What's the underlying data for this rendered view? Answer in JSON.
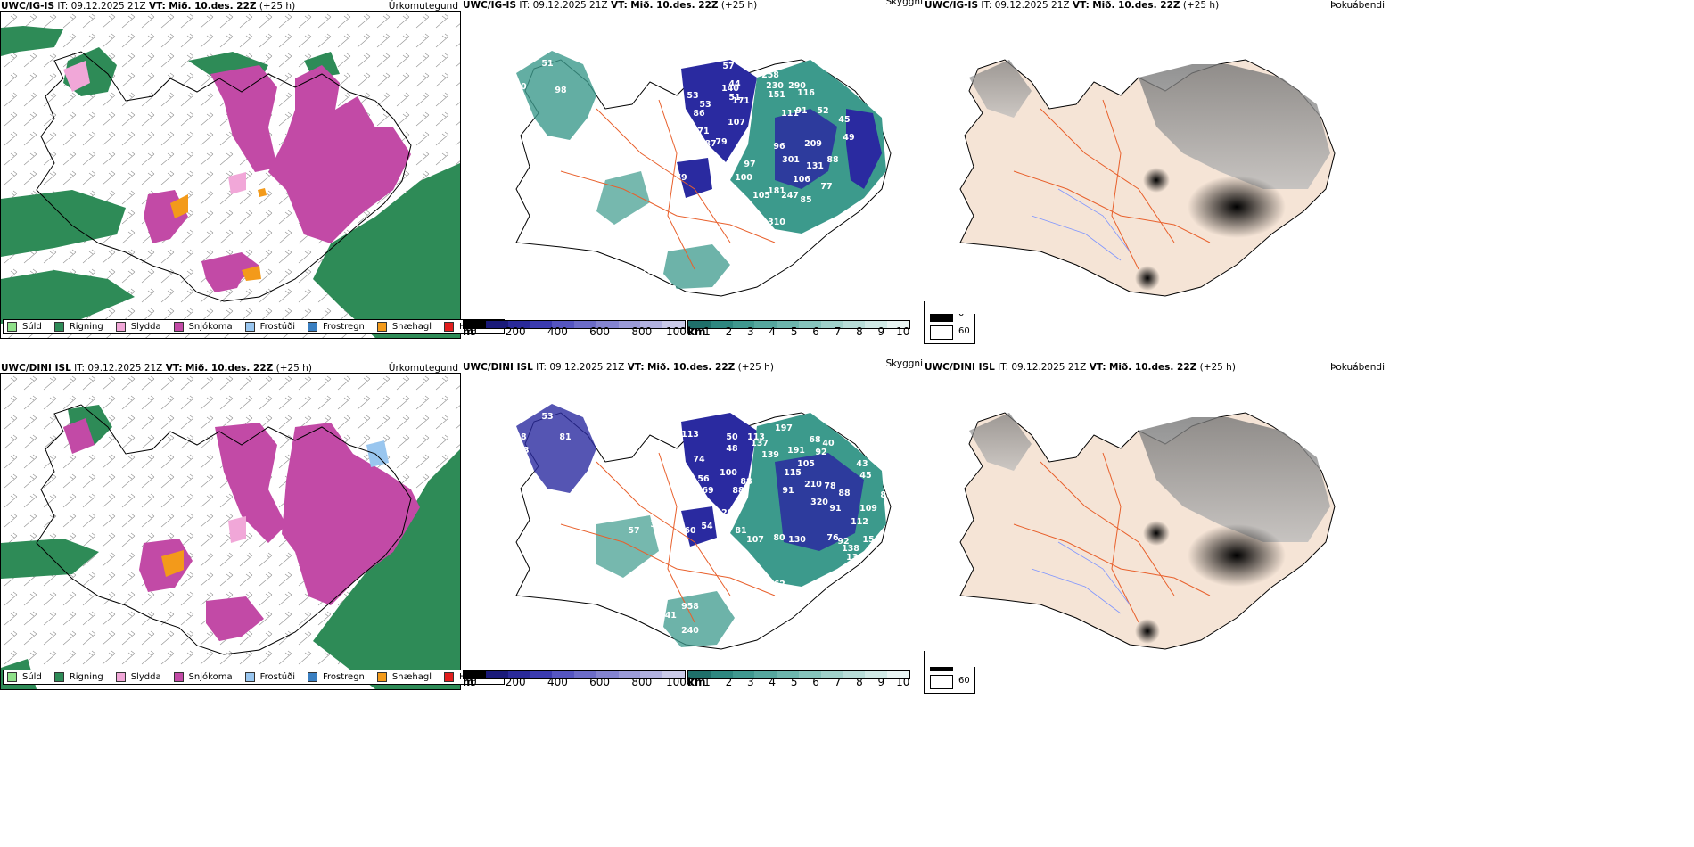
{
  "rows": [
    {
      "left": {
        "model": "UWC/IG-IS",
        "it": "IT: 09.12.2025 21Z",
        "vt_label": "VT:",
        "vt": "Mið. 10.des. 22Z",
        "lead": "(+25 h)",
        "param": "Úrkomutegund"
      },
      "mid": {
        "model": "UWC/IG-IS",
        "it": "IT: 09.12.2025 21Z",
        "vt_label": "VT:",
        "vt": "Mið. 10.des. 22Z",
        "lead": "(+25 h)",
        "param": "Skyggni",
        "values": [
          "13",
          "51",
          "104",
          "80",
          "98",
          "53",
          "53",
          "86",
          "71",
          "87",
          "44",
          "51",
          "57",
          "140",
          "171",
          "107",
          "79",
          "216",
          "258",
          "230",
          "290",
          "151",
          "116",
          "111",
          "91",
          "52",
          "45",
          "49",
          "96",
          "209",
          "301",
          "131",
          "106",
          "88",
          "77",
          "79",
          "70",
          "100",
          "97",
          "87",
          "105",
          "181",
          "247",
          "85",
          "310",
          "202",
          "203",
          "332"
        ]
      },
      "right": {
        "model": "UWC/IG-IS",
        "it": "IT: 09.12.2025 21Z",
        "vt_label": "VT:",
        "vt": "Mið. 10.des. 22Z",
        "lead": "(+25 h)",
        "param": "Þokuábendi"
      }
    },
    {
      "left": {
        "model": "UWC/DINI ISL",
        "it": "IT: 09.12.2025 21Z",
        "vt_label": "VT:",
        "vt": "Mið. 10.des. 22Z",
        "lead": "(+25 h)",
        "param": "Úrkomutegund"
      },
      "mid": {
        "model": "UWC/DINI ISL",
        "it": "IT: 09.12.2025 21Z",
        "vt_label": "VT:",
        "vt": "Mið. 10.des. 22Z",
        "lead": "(+25 h)",
        "param": "Skyggni",
        "values": [
          "78",
          "53",
          "48",
          "93",
          "81",
          "113",
          "74",
          "56",
          "69",
          "50",
          "48",
          "100",
          "88",
          "88",
          "113",
          "137",
          "139",
          "197",
          "191",
          "68",
          "92",
          "40",
          "105",
          "115",
          "91",
          "210",
          "78",
          "88",
          "43",
          "45",
          "86",
          "320",
          "91",
          "109",
          "112",
          "207",
          "54",
          "60",
          "57",
          "33",
          "81",
          "107",
          "80",
          "130",
          "76",
          "92",
          "138",
          "15",
          "139",
          "262",
          "958",
          "241",
          "240"
        ]
      },
      "right": {
        "model": "UWC/DINI ISL",
        "it": "IT: 09.12.2025 21Z",
        "vt_label": "VT:",
        "vt": "Mið. 10.des. 22Z",
        "lead": "(+25 h)",
        "param": "Þokuábendi"
      }
    }
  ],
  "precip_legend": [
    {
      "label": "Súld",
      "color": "#8fe08a"
    },
    {
      "label": "Rigning",
      "color": "#2e8b57"
    },
    {
      "label": "Slydda",
      "color": "#f1a7d8"
    },
    {
      "label": "Snjókoma",
      "color": "#c24aa6"
    },
    {
      "label": "Frostúði",
      "color": "#99c6ef"
    },
    {
      "label": "Frostregn",
      "color": "#3a7fc1"
    },
    {
      "label": "Snæhagl",
      "color": "#f39a1a"
    },
    {
      "label": "Haglél",
      "color": "#e11d1d"
    }
  ],
  "height_scale": {
    "unit": "m",
    "ticks": [
      "0",
      "200",
      "400",
      "600",
      "800",
      "1000"
    ],
    "colors": [
      "#000000",
      "#1a1a7a",
      "#2a2a9a",
      "#3b3bb0",
      "#5555c0",
      "#6c6cc8",
      "#8484d0",
      "#9b9bd8",
      "#b2b2e0",
      "#cacae8"
    ]
  },
  "vis_scale": {
    "unit": "km",
    "ticks": [
      "1",
      "2",
      "3",
      "4",
      "5",
      "6",
      "7",
      "8",
      "9",
      "10"
    ],
    "colors": [
      "#1f6f6a",
      "#2e8780",
      "#40988f",
      "#56a79e",
      "#6db6ad",
      "#86c4bc",
      "#a0d1ca",
      "#b8ddd8",
      "#d0e9e5",
      "#e8f4f2"
    ]
  },
  "fog_scale": {
    "high": "0",
    "low": "60"
  },
  "colors": {
    "rain": "#2e8b57",
    "snow": "#c24aa6",
    "sleet": "#f1a7d8",
    "hail": "#f39a1a",
    "freezing": "#99c6ef",
    "cloud": "#2a2aa0",
    "visteal": "#3c9a8c",
    "land": "#f5e4d6",
    "road": "#e8602c",
    "river": "#7f95ff"
  }
}
